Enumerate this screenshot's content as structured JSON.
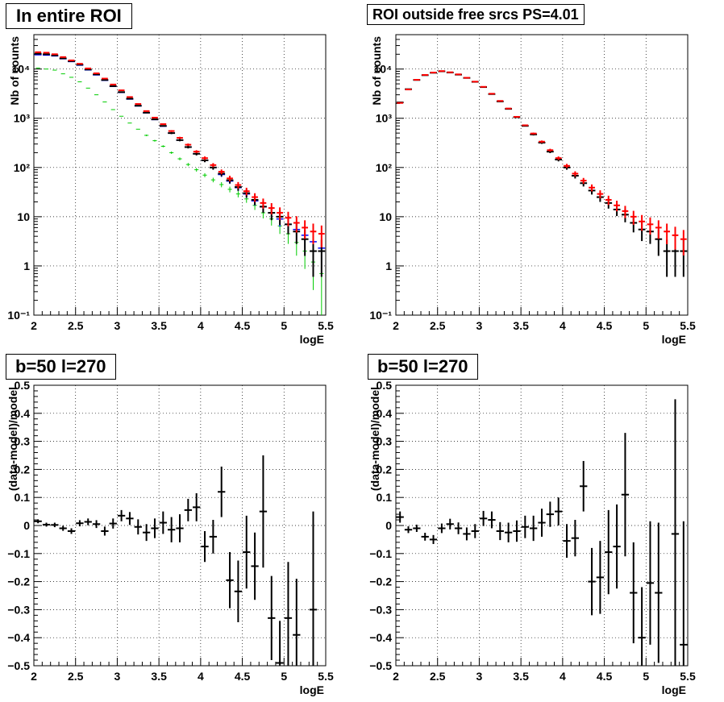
{
  "chart_data": [
    {
      "type": "scatter",
      "title": "In entire ROI",
      "xlabel": "logE",
      "ylabel": "Nb of counts",
      "xlim": [
        2,
        5.5
      ],
      "ylim": [
        0.1,
        50000
      ],
      "yscale": "log",
      "grid": true,
      "xticks": [
        "2",
        "2.5",
        "3",
        "3.5",
        "4",
        "4.5",
        "5",
        "5.5"
      ],
      "yticks": [
        "10⁻¹",
        "1",
        "10",
        "10²",
        "10³",
        "10⁴"
      ],
      "colors": {
        "data": "#000000",
        "model": "#ff0000",
        "blue": "#0000ff",
        "green": "#00cc00"
      },
      "x": [
        2.05,
        2.15,
        2.25,
        2.35,
        2.45,
        2.55,
        2.65,
        2.75,
        2.85,
        2.95,
        3.05,
        3.15,
        3.25,
        3.35,
        3.45,
        3.55,
        3.65,
        3.75,
        3.85,
        3.95,
        4.05,
        4.15,
        4.25,
        4.35,
        4.45,
        4.55,
        4.65,
        4.75,
        4.85,
        4.95,
        5.05,
        5.15,
        5.25,
        5.35,
        5.45
      ],
      "series": [
        {
          "role": "data",
          "values": [
            20500,
            20000,
            19000,
            16500,
            14500,
            12300,
            9800,
            7800,
            6000,
            4500,
            3400,
            2500,
            1800,
            1300,
            950,
            700,
            500,
            360,
            260,
            190,
            140,
            100,
            75,
            55,
            40,
            30,
            22,
            16,
            12,
            10,
            7,
            5,
            3.5,
            2,
            2
          ],
          "err": [
            143,
            141,
            138,
            128,
            120,
            111,
            99,
            88,
            77,
            67,
            58,
            50,
            42,
            36,
            31,
            26,
            22,
            19,
            16,
            14,
            12,
            10,
            8.7,
            7.4,
            6.3,
            5.5,
            4.7,
            4,
            3.5,
            3.2,
            2.6,
            2.2,
            1.9,
            1.4,
            1.4
          ]
        },
        {
          "role": "model",
          "values": [
            22000,
            21500,
            20000,
            17500,
            15000,
            12800,
            10300,
            8200,
            6400,
            4850,
            3700,
            2700,
            1950,
            1400,
            1030,
            760,
            550,
            400,
            290,
            210,
            155,
            112,
            82,
            60,
            44,
            33,
            25,
            19,
            15,
            12,
            9.5,
            7.5,
            6,
            5,
            4.5
          ]
        },
        {
          "role": "blue",
          "values": [
            19500,
            19200,
            18500,
            16200,
            14200,
            12000,
            9600,
            7600,
            5900,
            4450,
            3350,
            2450,
            1780,
            1290,
            940,
            690,
            500,
            360,
            260,
            190,
            140,
            100,
            72,
            53,
            39,
            29,
            21,
            16,
            12,
            9,
            7,
            5.5,
            4.2,
            3.1,
            2.3
          ]
        },
        {
          "role": "green",
          "values": [
            10500,
            10000,
            9500,
            8000,
            6800,
            5500,
            4100,
            3000,
            2150,
            1500,
            1100,
            800,
            600,
            450,
            350,
            270,
            200,
            150,
            115,
            90,
            70,
            56,
            45,
            36,
            29,
            23,
            17,
            12,
            9,
            6.5,
            4.5,
            3,
            2,
            1.2,
            0.7
          ]
        }
      ]
    },
    {
      "type": "scatter",
      "title": "ROI outside free srcs PS=4.01",
      "xlabel": "logE",
      "ylabel": "Nb of counts",
      "xlim": [
        2,
        5.5
      ],
      "ylim": [
        0.1,
        50000
      ],
      "yscale": "log",
      "grid": true,
      "xticks": [
        "2",
        "2.5",
        "3",
        "3.5",
        "4",
        "4.5",
        "5",
        "5.5"
      ],
      "yticks": [
        "10⁻¹",
        "1",
        "10",
        "10²",
        "10³",
        "10⁴"
      ],
      "colors": {
        "data": "#000000",
        "model": "#ff0000"
      },
      "x": [
        2.05,
        2.15,
        2.25,
        2.35,
        2.45,
        2.55,
        2.65,
        2.75,
        2.85,
        2.95,
        3.05,
        3.15,
        3.25,
        3.35,
        3.45,
        3.55,
        3.65,
        3.75,
        3.85,
        3.95,
        4.05,
        4.15,
        4.25,
        4.35,
        4.45,
        4.55,
        4.65,
        4.75,
        4.85,
        4.95,
        5.05,
        5.15,
        5.25,
        5.35,
        5.45
      ],
      "series": [
        {
          "role": "data",
          "values": [
            2100,
            3900,
            6000,
            7500,
            8400,
            9000,
            8500,
            7700,
            6600,
            5500,
            4300,
            3100,
            2200,
            1550,
            1050,
            700,
            470,
            320,
            210,
            145,
            100,
            68,
            48,
            34,
            25,
            19,
            14,
            11,
            7.5,
            5.5,
            5,
            3.5,
            2,
            2,
            2
          ],
          "err": [
            46,
            62,
            77,
            87,
            92,
            95,
            92,
            88,
            81,
            74,
            66,
            56,
            47,
            39,
            32,
            26,
            22,
            18,
            14,
            12,
            10,
            8.2,
            6.9,
            5.8,
            5,
            4.4,
            3.7,
            3.3,
            2.7,
            2.3,
            2.2,
            1.9,
            1.4,
            1.4,
            1.4
          ]
        },
        {
          "role": "model",
          "values": [
            2050,
            3850,
            6050,
            7600,
            8500,
            9100,
            8600,
            7800,
            6650,
            5550,
            4350,
            3150,
            2250,
            1580,
            1070,
            720,
            490,
            335,
            225,
            155,
            108,
            75,
            54,
            39,
            29,
            22,
            17,
            13,
            10,
            8,
            7,
            6,
            5,
            4.2,
            3.5
          ]
        }
      ]
    },
    {
      "type": "scatter",
      "title": "b=50 l=270",
      "xlabel": "logE",
      "ylabel": "(data-model)/model",
      "xlim": [
        2,
        5.5
      ],
      "ylim": [
        -0.5,
        0.5
      ],
      "grid": true,
      "xticks": [
        "2",
        "2.5",
        "3",
        "3.5",
        "4",
        "4.5",
        "5",
        "5.5"
      ],
      "yticks": [
        "−0.5",
        "−0.4",
        "−0.3",
        "−0.2",
        "−0.1",
        "0",
        "0.1",
        "0.2",
        "0.3",
        "0.4",
        "0.5"
      ],
      "x": [
        2.05,
        2.15,
        2.25,
        2.35,
        2.45,
        2.55,
        2.65,
        2.75,
        2.85,
        2.95,
        3.05,
        3.15,
        3.25,
        3.35,
        3.45,
        3.55,
        3.65,
        3.75,
        3.85,
        3.95,
        4.05,
        4.15,
        4.25,
        4.35,
        4.45,
        4.55,
        4.65,
        4.75,
        4.85,
        4.95,
        5.05,
        5.15,
        5.25,
        5.35,
        5.45
      ],
      "values": [
        0.015,
        0.003,
        0.002,
        -0.01,
        -0.02,
        0.008,
        0.013,
        0.005,
        -0.02,
        0.007,
        0.035,
        0.025,
        -0.005,
        -0.025,
        -0.01,
        0.01,
        -0.015,
        -0.01,
        0.055,
        0.065,
        -0.075,
        -0.04,
        0.12,
        -0.195,
        -0.235,
        -0.095,
        -0.145,
        0.05,
        -0.33,
        -0.49,
        -0.33,
        -0.39,
        null,
        -0.3,
        null
      ],
      "err": [
        0.007,
        0.007,
        0.008,
        0.009,
        0.01,
        0.011,
        0.012,
        0.014,
        0.016,
        0.018,
        0.02,
        0.023,
        0.027,
        0.03,
        0.035,
        0.04,
        0.045,
        0.05,
        0.04,
        0.05,
        0.055,
        0.06,
        0.09,
        0.1,
        0.11,
        0.13,
        0.12,
        0.2,
        0.15,
        0.15,
        0.2,
        0.2,
        null,
        0.35,
        null
      ]
    },
    {
      "type": "scatter",
      "title": "b=50 l=270",
      "xlabel": "logE",
      "ylabel": "(data-model)/model",
      "xlim": [
        2,
        5.5
      ],
      "ylim": [
        -0.5,
        0.5
      ],
      "grid": true,
      "xticks": [
        "2",
        "2.5",
        "3",
        "3.5",
        "4",
        "4.5",
        "5",
        "5.5"
      ],
      "yticks": [
        "−0.5",
        "−0.4",
        "−0.3",
        "−0.2",
        "−0.1",
        "0",
        "0.1",
        "0.2",
        "0.3",
        "0.4",
        "0.5"
      ],
      "x": [
        2.05,
        2.15,
        2.25,
        2.35,
        2.45,
        2.55,
        2.65,
        2.75,
        2.85,
        2.95,
        3.05,
        3.15,
        3.25,
        3.35,
        3.45,
        3.55,
        3.65,
        3.75,
        3.85,
        3.95,
        4.05,
        4.15,
        4.25,
        4.35,
        4.45,
        4.55,
        4.65,
        4.75,
        4.85,
        4.95,
        5.05,
        5.15,
        5.25,
        5.35,
        5.45
      ],
      "values": [
        0.03,
        -0.015,
        -0.01,
        -0.04,
        -0.05,
        -0.01,
        0.005,
        -0.01,
        -0.03,
        -0.02,
        0.025,
        0.02,
        -0.02,
        -0.025,
        -0.02,
        -0.005,
        -0.01,
        0.01,
        0.04,
        0.05,
        -0.055,
        -0.045,
        0.14,
        -0.2,
        -0.185,
        -0.095,
        -0.075,
        0.11,
        -0.24,
        -0.4,
        -0.205,
        -0.24,
        null,
        -0.03,
        -0.425
      ],
      "err": [
        0.02,
        0.012,
        0.013,
        0.014,
        0.016,
        0.017,
        0.019,
        0.021,
        0.023,
        0.025,
        0.027,
        0.03,
        0.032,
        0.035,
        0.038,
        0.04,
        0.045,
        0.05,
        0.045,
        0.05,
        0.06,
        0.065,
        0.09,
        0.12,
        0.13,
        0.15,
        0.15,
        0.22,
        0.18,
        0.18,
        0.22,
        0.25,
        null,
        0.48,
        0.44
      ]
    }
  ]
}
